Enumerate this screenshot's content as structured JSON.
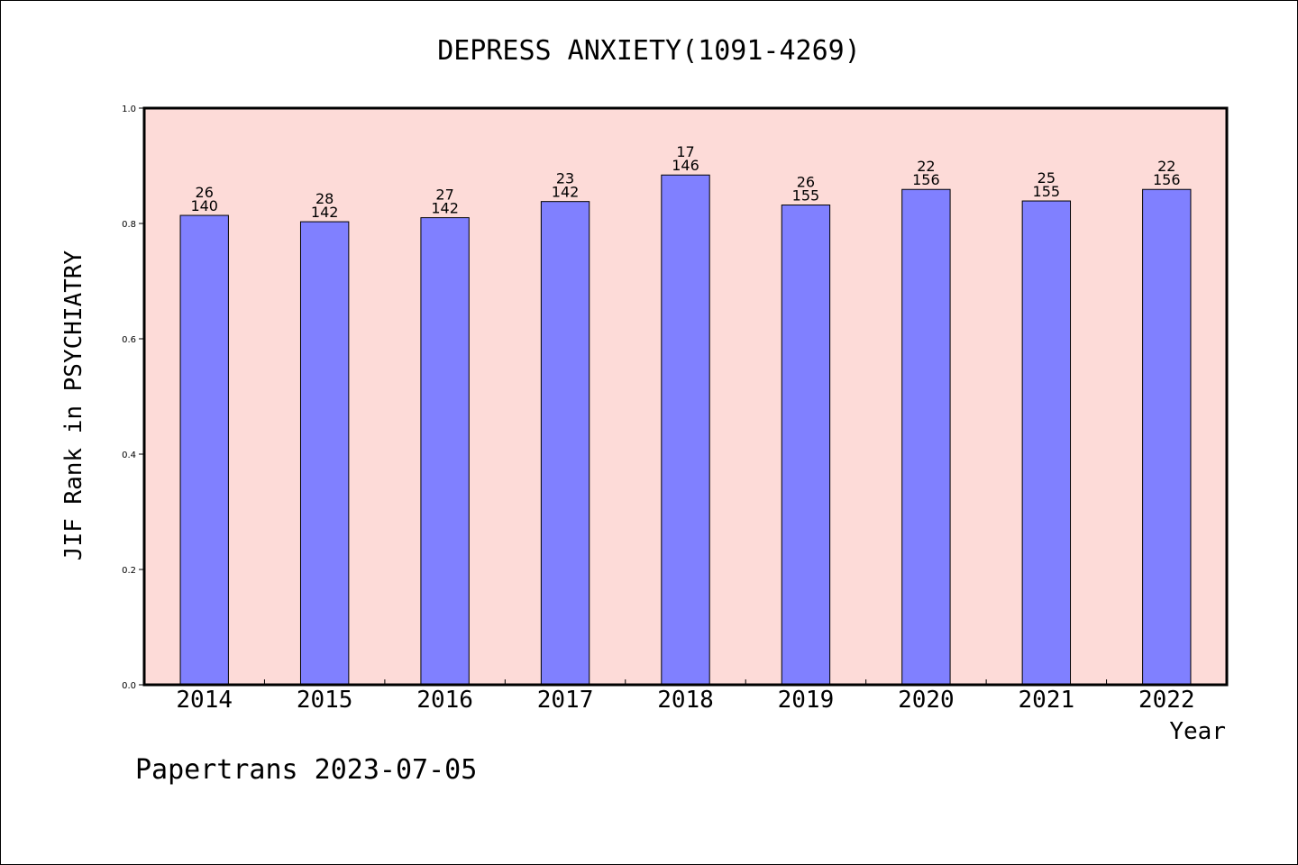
{
  "chart_data": {
    "type": "bar",
    "title": "DEPRESS ANXIETY(1091-4269)",
    "xlabel": "Year",
    "ylabel": "JIF Rank in PSYCHIATRY",
    "categories": [
      "2014",
      "2015",
      "2016",
      "2017",
      "2018",
      "2019",
      "2020",
      "2021",
      "2022"
    ],
    "values": [
      0.814,
      0.803,
      0.81,
      0.838,
      0.884,
      0.832,
      0.859,
      0.839,
      0.859
    ],
    "rank_labels": [
      "26",
      "28",
      "27",
      "23",
      "17",
      "26",
      "22",
      "25",
      "22"
    ],
    "total_labels": [
      "140",
      "142",
      "142",
      "142",
      "146",
      "155",
      "156",
      "155",
      "156"
    ],
    "ylim": [
      0.0,
      1.0
    ],
    "yticks": [
      "0.0",
      "0.2",
      "0.4",
      "0.6",
      "0.8",
      "1.0"
    ],
    "grid": false,
    "colors": {
      "bar": "#8080ff",
      "plot_background": "#fddbd8"
    }
  },
  "footer": {
    "text": "Papertrans 2023-07-05"
  }
}
